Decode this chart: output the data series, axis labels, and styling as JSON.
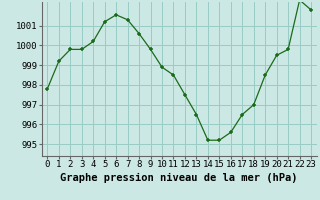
{
  "x": [
    0,
    1,
    2,
    3,
    4,
    5,
    6,
    7,
    8,
    9,
    10,
    11,
    12,
    13,
    14,
    15,
    16,
    17,
    18,
    19,
    20,
    21,
    22,
    23
  ],
  "y": [
    997.8,
    999.2,
    999.8,
    999.8,
    1000.2,
    1001.2,
    1001.55,
    1001.3,
    1000.6,
    999.8,
    998.9,
    998.5,
    997.5,
    996.5,
    995.2,
    995.2,
    995.6,
    996.5,
    997.0,
    998.5,
    999.5,
    999.8,
    1002.3,
    1001.8
  ],
  "line_color": "#1a6b1a",
  "marker": "+",
  "bg_color": "#cce8e4",
  "grid_color": "#99ccc6",
  "ylabel_ticks": [
    995,
    996,
    997,
    998,
    999,
    1000,
    1001
  ],
  "xlabel": "Graphe pression niveau de la mer (hPa)",
  "ylim": [
    994.4,
    1002.2
  ],
  "xlim": [
    -0.5,
    23.5
  ],
  "tick_fontsize": 6.5,
  "label_fontsize": 7.5
}
